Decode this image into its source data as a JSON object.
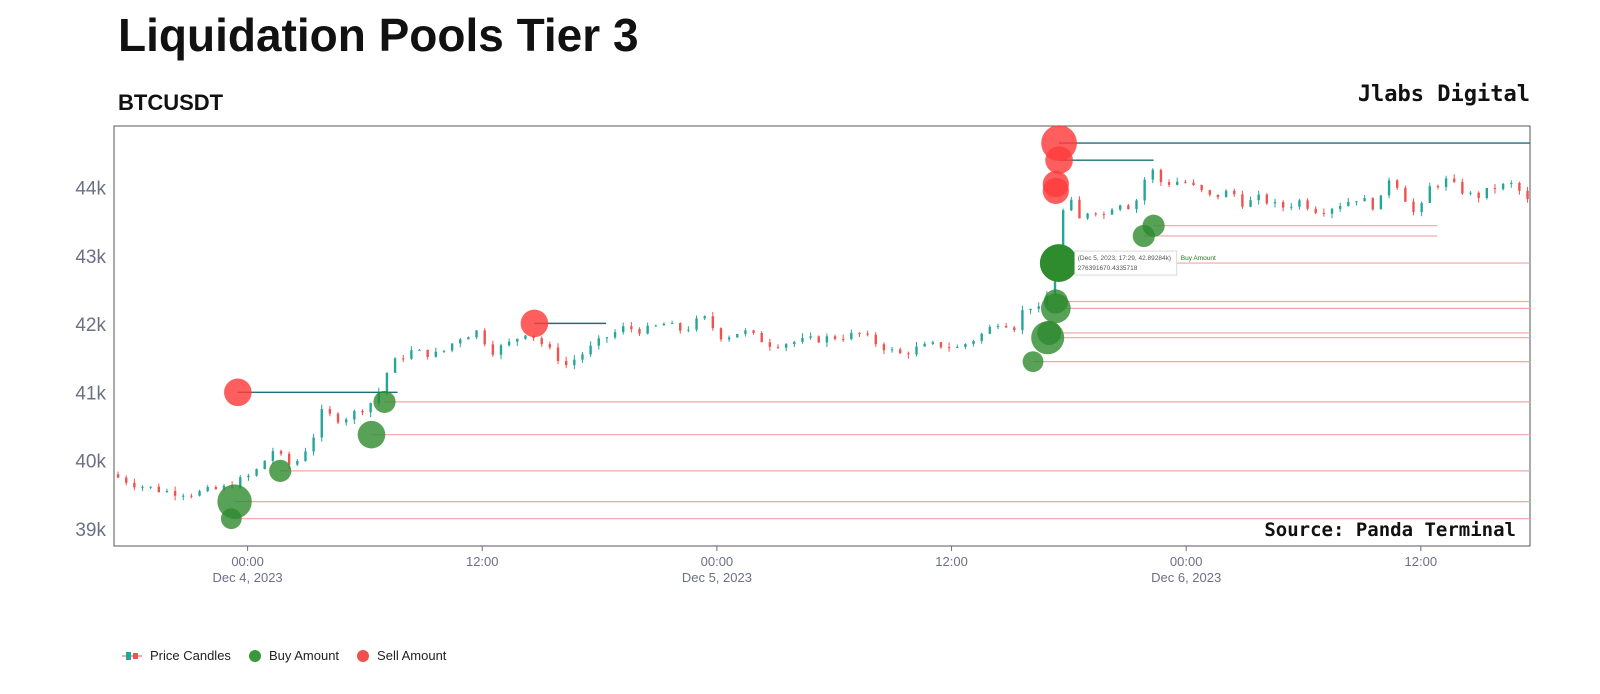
{
  "header": {
    "title": "Liquidation Pools Tier 3",
    "subtitle": "BTCUSDT",
    "brand": "Jlabs Digital"
  },
  "source_note": "Source: Panda Terminal",
  "tooltip": {
    "line1": "(Dec 5, 2023, 17:29, 42.89284k)",
    "series": "Buy Amount",
    "line2": "276391670.4335718"
  },
  "legend": {
    "candles": "Price Candles",
    "buy": "Buy Amount",
    "sell": "Sell Amount"
  },
  "colors": {
    "up": "#26a69a",
    "down": "#ef5350",
    "buy": "#2e8b2e",
    "sell": "#ff3b3b",
    "sell_line": "#1f6f7a",
    "buy_line": "#f2a5a5",
    "axis_text": "#6b7185",
    "border": "#555555"
  },
  "chart_data": {
    "type": "scatter",
    "x_type": "datetime",
    "x_range": [
      "2023-12-03 17:10",
      "2023-12-06 17:35"
    ],
    "ylim": [
      38750,
      44900
    ],
    "yticks": [
      39000,
      40000,
      41000,
      42000,
      43000,
      44000
    ],
    "ytick_labels": [
      "39k",
      "40k",
      "41k",
      "42k",
      "43k",
      "44k"
    ],
    "xticks": [
      {
        "t": "2023-12-04 00:00",
        "label": "00:00",
        "sub": "Dec 4, 2023"
      },
      {
        "t": "2023-12-04 12:00",
        "label": "12:00",
        "sub": ""
      },
      {
        "t": "2023-12-05 00:00",
        "label": "00:00",
        "sub": "Dec 5, 2023"
      },
      {
        "t": "2023-12-05 12:00",
        "label": "12:00",
        "sub": ""
      },
      {
        "t": "2023-12-06 00:00",
        "label": "00:00",
        "sub": "Dec 6, 2023"
      },
      {
        "t": "2023-12-06 12:00",
        "label": "12:00",
        "sub": ""
      }
    ],
    "price_path": [
      [
        "2023-12-03 17:10",
        39800
      ],
      [
        "2023-12-03 18:30",
        39650
      ],
      [
        "2023-12-03 20:00",
        39550
      ],
      [
        "2023-12-03 21:30",
        39520
      ],
      [
        "2023-12-03 23:00",
        39600
      ],
      [
        "2023-12-04 00:30",
        39800
      ],
      [
        "2023-12-04 01:30",
        40150
      ],
      [
        "2023-12-04 02:30",
        39900
      ],
      [
        "2023-12-04 03:30",
        40300
      ],
      [
        "2023-12-04 04:00",
        40700
      ],
      [
        "2023-12-04 05:00",
        40600
      ],
      [
        "2023-12-04 06:00",
        40750
      ],
      [
        "2023-12-04 06:45",
        40900
      ],
      [
        "2023-12-04 07:30",
        41400
      ],
      [
        "2023-12-04 08:30",
        41600
      ],
      [
        "2023-12-04 10:00",
        41550
      ],
      [
        "2023-12-04 11:00",
        41800
      ],
      [
        "2023-12-04 12:00",
        41900
      ],
      [
        "2023-12-04 12:40",
        41600
      ],
      [
        "2023-12-04 13:30",
        41700
      ],
      [
        "2023-12-04 14:30",
        41900
      ],
      [
        "2023-12-04 15:30",
        41650
      ],
      [
        "2023-12-04 16:30",
        41400
      ],
      [
        "2023-12-04 17:30",
        41600
      ],
      [
        "2023-12-04 18:30",
        41800
      ],
      [
        "2023-12-04 19:30",
        41950
      ],
      [
        "2023-12-04 20:30",
        41900
      ],
      [
        "2023-12-04 21:30",
        42000
      ],
      [
        "2023-12-04 22:30",
        41900
      ],
      [
        "2023-12-04 23:30",
        42100
      ],
      [
        "2023-12-05 00:30",
        41800
      ],
      [
        "2023-12-05 01:30",
        41900
      ],
      [
        "2023-12-05 03:00",
        41700
      ],
      [
        "2023-12-05 04:30",
        41750
      ],
      [
        "2023-12-05 06:00",
        41800
      ],
      [
        "2023-12-05 07:30",
        41850
      ],
      [
        "2023-12-05 08:30",
        41700
      ],
      [
        "2023-12-05 09:30",
        41550
      ],
      [
        "2023-12-05 10:30",
        41650
      ],
      [
        "2023-12-05 11:30",
        41700
      ],
      [
        "2023-12-05 12:30",
        41650
      ],
      [
        "2023-12-05 13:30",
        41800
      ],
      [
        "2023-12-05 14:00",
        41900
      ],
      [
        "2023-12-05 14:40",
        42050
      ],
      [
        "2023-12-05 15:30",
        41950
      ],
      [
        "2023-12-05 16:00",
        42300
      ],
      [
        "2023-12-05 16:40",
        42200
      ],
      [
        "2023-12-05 17:10",
        42450
      ],
      [
        "2023-12-05 17:40",
        43400
      ],
      [
        "2023-12-05 18:10",
        43900
      ],
      [
        "2023-12-05 18:40",
        43500
      ],
      [
        "2023-12-05 19:20",
        43700
      ],
      [
        "2023-12-05 20:00",
        43600
      ],
      [
        "2023-12-05 20:40",
        43800
      ],
      [
        "2023-12-05 21:30",
        43700
      ],
      [
        "2023-12-05 22:20",
        44300
      ],
      [
        "2023-12-05 23:00",
        44050
      ],
      [
        "2023-12-06 00:00",
        44100
      ],
      [
        "2023-12-06 01:30",
        43850
      ],
      [
        "2023-12-06 02:30",
        43950
      ],
      [
        "2023-12-06 03:10",
        43750
      ],
      [
        "2023-12-06 04:00",
        43850
      ],
      [
        "2023-12-06 05:00",
        43700
      ],
      [
        "2023-12-06 06:00",
        43800
      ],
      [
        "2023-12-06 07:00",
        43650
      ],
      [
        "2023-12-06 08:00",
        43750
      ],
      [
        "2023-12-06 09:00",
        43850
      ],
      [
        "2023-12-06 10:00",
        43700
      ],
      [
        "2023-12-06 10:40",
        44200
      ],
      [
        "2023-12-06 11:30",
        43800
      ],
      [
        "2023-12-06 12:00",
        43550
      ],
      [
        "2023-12-06 12:40",
        44000
      ],
      [
        "2023-12-06 13:30",
        44100
      ],
      [
        "2023-12-06 14:20",
        43950
      ],
      [
        "2023-12-06 15:00",
        43850
      ],
      [
        "2023-12-06 16:00",
        44000
      ],
      [
        "2023-12-06 17:00",
        44050
      ],
      [
        "2023-12-06 17:35",
        43800
      ]
    ],
    "series": [
      {
        "name": "Buy Amount",
        "points": [
          {
            "t": "2023-12-03 23:10",
            "y": 39150,
            "v": 1
          },
          {
            "t": "2023-12-03 23:20",
            "y": 39400,
            "v": 3
          },
          {
            "t": "2023-12-04 01:40",
            "y": 39850,
            "v": 1.2
          },
          {
            "t": "2023-12-04 06:20",
            "y": 40380,
            "v": 2
          },
          {
            "t": "2023-12-04 07:00",
            "y": 40860,
            "v": 1.2
          },
          {
            "t": "2023-12-05 16:10",
            "y": 41450,
            "v": 1
          },
          {
            "t": "2023-12-05 16:55",
            "y": 41800,
            "v": 2.8
          },
          {
            "t": "2023-12-05 17:00",
            "y": 41870,
            "v": 1.5
          },
          {
            "t": "2023-12-05 17:20",
            "y": 42230,
            "v": 2.3
          },
          {
            "t": "2023-12-05 17:20",
            "y": 42330,
            "v": 1.5
          },
          {
            "t": "2023-12-05 17:29",
            "y": 42893,
            "v": 3.5
          },
          {
            "t": "2023-12-05 21:50",
            "y": 43290,
            "v": 1.2
          },
          {
            "t": "2023-12-05 22:20",
            "y": 43440,
            "v": 1.2
          }
        ]
      },
      {
        "name": "Sell Amount",
        "points": [
          {
            "t": "2023-12-03 23:30",
            "y": 41000,
            "v": 2
          },
          {
            "t": "2023-12-04 14:40",
            "y": 42010,
            "v": 2
          },
          {
            "t": "2023-12-05 17:20",
            "y": 43950,
            "v": 1.8
          },
          {
            "t": "2023-12-05 17:20",
            "y": 44050,
            "v": 1.8
          },
          {
            "t": "2023-12-05 17:30",
            "y": 44400,
            "v": 2
          },
          {
            "t": "2023-12-05 17:30",
            "y": 44650,
            "v": 3.2
          }
        ]
      }
    ],
    "sell_lines": [
      {
        "y": 41000,
        "t_start": "2023-12-03 23:30",
        "t_end": "2023-12-04 07:40"
      },
      {
        "y": 42010,
        "t_start": "2023-12-04 14:40",
        "t_end": "2023-12-04 18:20"
      },
      {
        "y": 44400,
        "t_start": "2023-12-05 17:30",
        "t_end": "2023-12-05 22:20"
      },
      {
        "y": 44650,
        "t_start": "2023-12-05 17:30",
        "t_end": "2023-12-06 17:35"
      }
    ],
    "buy_lines": [
      {
        "y": 39150,
        "t_start": "2023-12-03 23:10"
      },
      {
        "y": 39400,
        "t_start": "2023-12-03 23:20"
      },
      {
        "y": 39850,
        "t_start": "2023-12-04 01:40"
      },
      {
        "y": 40380,
        "t_start": "2023-12-04 06:20"
      },
      {
        "y": 40860,
        "t_start": "2023-12-04 07:00"
      },
      {
        "y": 41450,
        "t_start": "2023-12-05 16:10"
      },
      {
        "y": 41800,
        "t_start": "2023-12-05 16:55"
      },
      {
        "y": 41870,
        "t_start": "2023-12-05 17:00"
      },
      {
        "y": 42230,
        "t_start": "2023-12-05 17:20"
      },
      {
        "y": 42330,
        "t_start": "2023-12-05 17:20"
      },
      {
        "y": 42893,
        "t_start": "2023-12-05 17:29"
      },
      {
        "y": 43290,
        "t_start": "2023-12-05 21:50",
        "t_end": "2023-12-06 12:50"
      },
      {
        "y": 43440,
        "t_start": "2023-12-05 22:20",
        "t_end": "2023-12-06 12:50"
      }
    ]
  }
}
